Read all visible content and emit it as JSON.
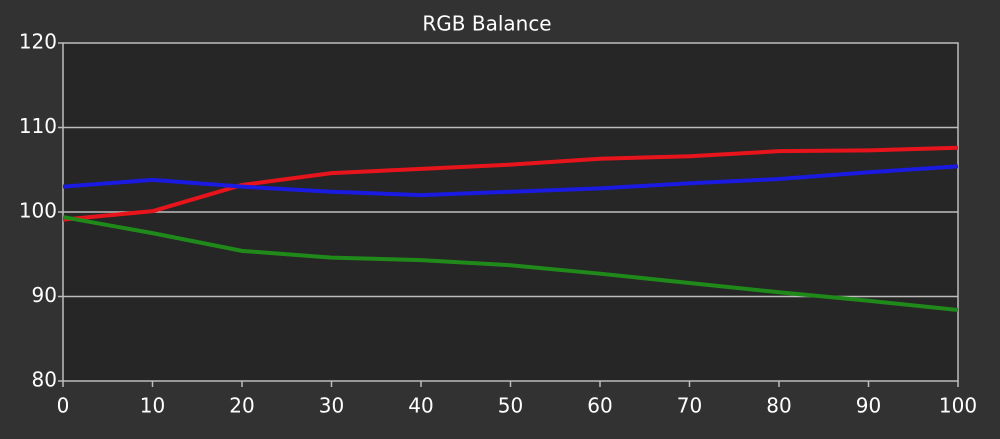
{
  "chart_data": {
    "type": "line",
    "title": "RGB Balance",
    "x": [
      0,
      10,
      20,
      30,
      40,
      50,
      60,
      70,
      80,
      90,
      100
    ],
    "series": [
      {
        "color": "#e8141c",
        "values": [
          99.1,
          100.1,
          103.2,
          104.6,
          105.1,
          105.6,
          106.3,
          106.6,
          107.2,
          107.3,
          107.6
        ]
      },
      {
        "color": "#1a1ae0",
        "values": [
          103.0,
          103.8,
          103.0,
          102.4,
          102.0,
          102.4,
          102.8,
          103.4,
          103.9,
          104.7,
          105.4
        ]
      },
      {
        "color": "#1f8a1a",
        "values": [
          99.4,
          97.5,
          95.4,
          94.6,
          94.3,
          93.7,
          92.7,
          91.6,
          90.5,
          89.5,
          88.4
        ]
      }
    ],
    "xlim": [
      0,
      100
    ],
    "xticks": [
      0,
      10,
      20,
      30,
      40,
      50,
      60,
      70,
      80,
      90,
      100
    ],
    "ylim": [
      80,
      120
    ],
    "yticks": [
      80,
      90,
      100,
      110,
      120
    ],
    "grid": true
  }
}
